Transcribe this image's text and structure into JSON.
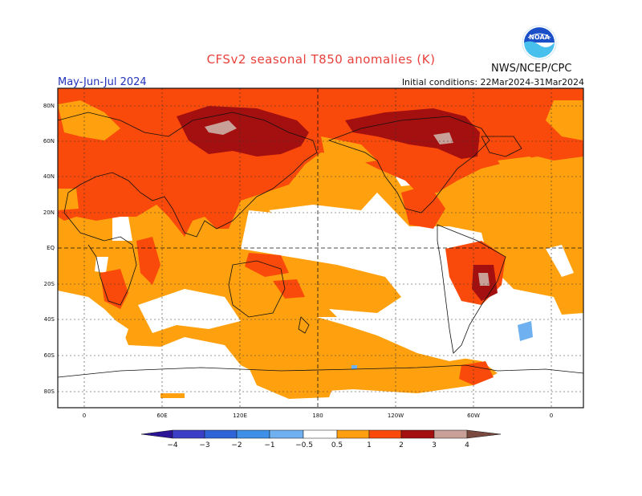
{
  "header": {
    "title": "CFSv2 seasonal T850 anomalies (K)",
    "org": "NWS/NCEP/CPC",
    "period": "May-Jun-Jul 2024",
    "initial_conditions": "Initial conditions: 22Mar2024-31Mar2024"
  },
  "logo": {
    "name": "noaa-logo",
    "text": "NOAA",
    "colors": [
      "#1a4fc8",
      "#48c0ee",
      "#ffffff"
    ]
  },
  "map": {
    "lat_labels": [
      "80N",
      "60N",
      "40N",
      "20N",
      "EQ",
      "20S",
      "40S",
      "60S",
      "80S"
    ],
    "lon_labels": [
      "0",
      "60E",
      "120E",
      "180",
      "120W",
      "60W",
      "0"
    ],
    "projection": "cylindrical, 0-360 longitude",
    "grid": "dotted"
  },
  "colorbar": {
    "ticks": [
      "−4",
      "−3",
      "−2",
      "−1",
      "−0.5",
      "0.5",
      "1",
      "2",
      "3",
      "4"
    ],
    "colors": [
      "#2c1496",
      "#3b3fc8",
      "#2f63d8",
      "#3d8fe8",
      "#6fb0f0",
      "#ffffff",
      "#ff9e0f",
      "#fa4a0b",
      "#a40f0f",
      "#c8a098",
      "#7a4a40"
    ]
  }
}
